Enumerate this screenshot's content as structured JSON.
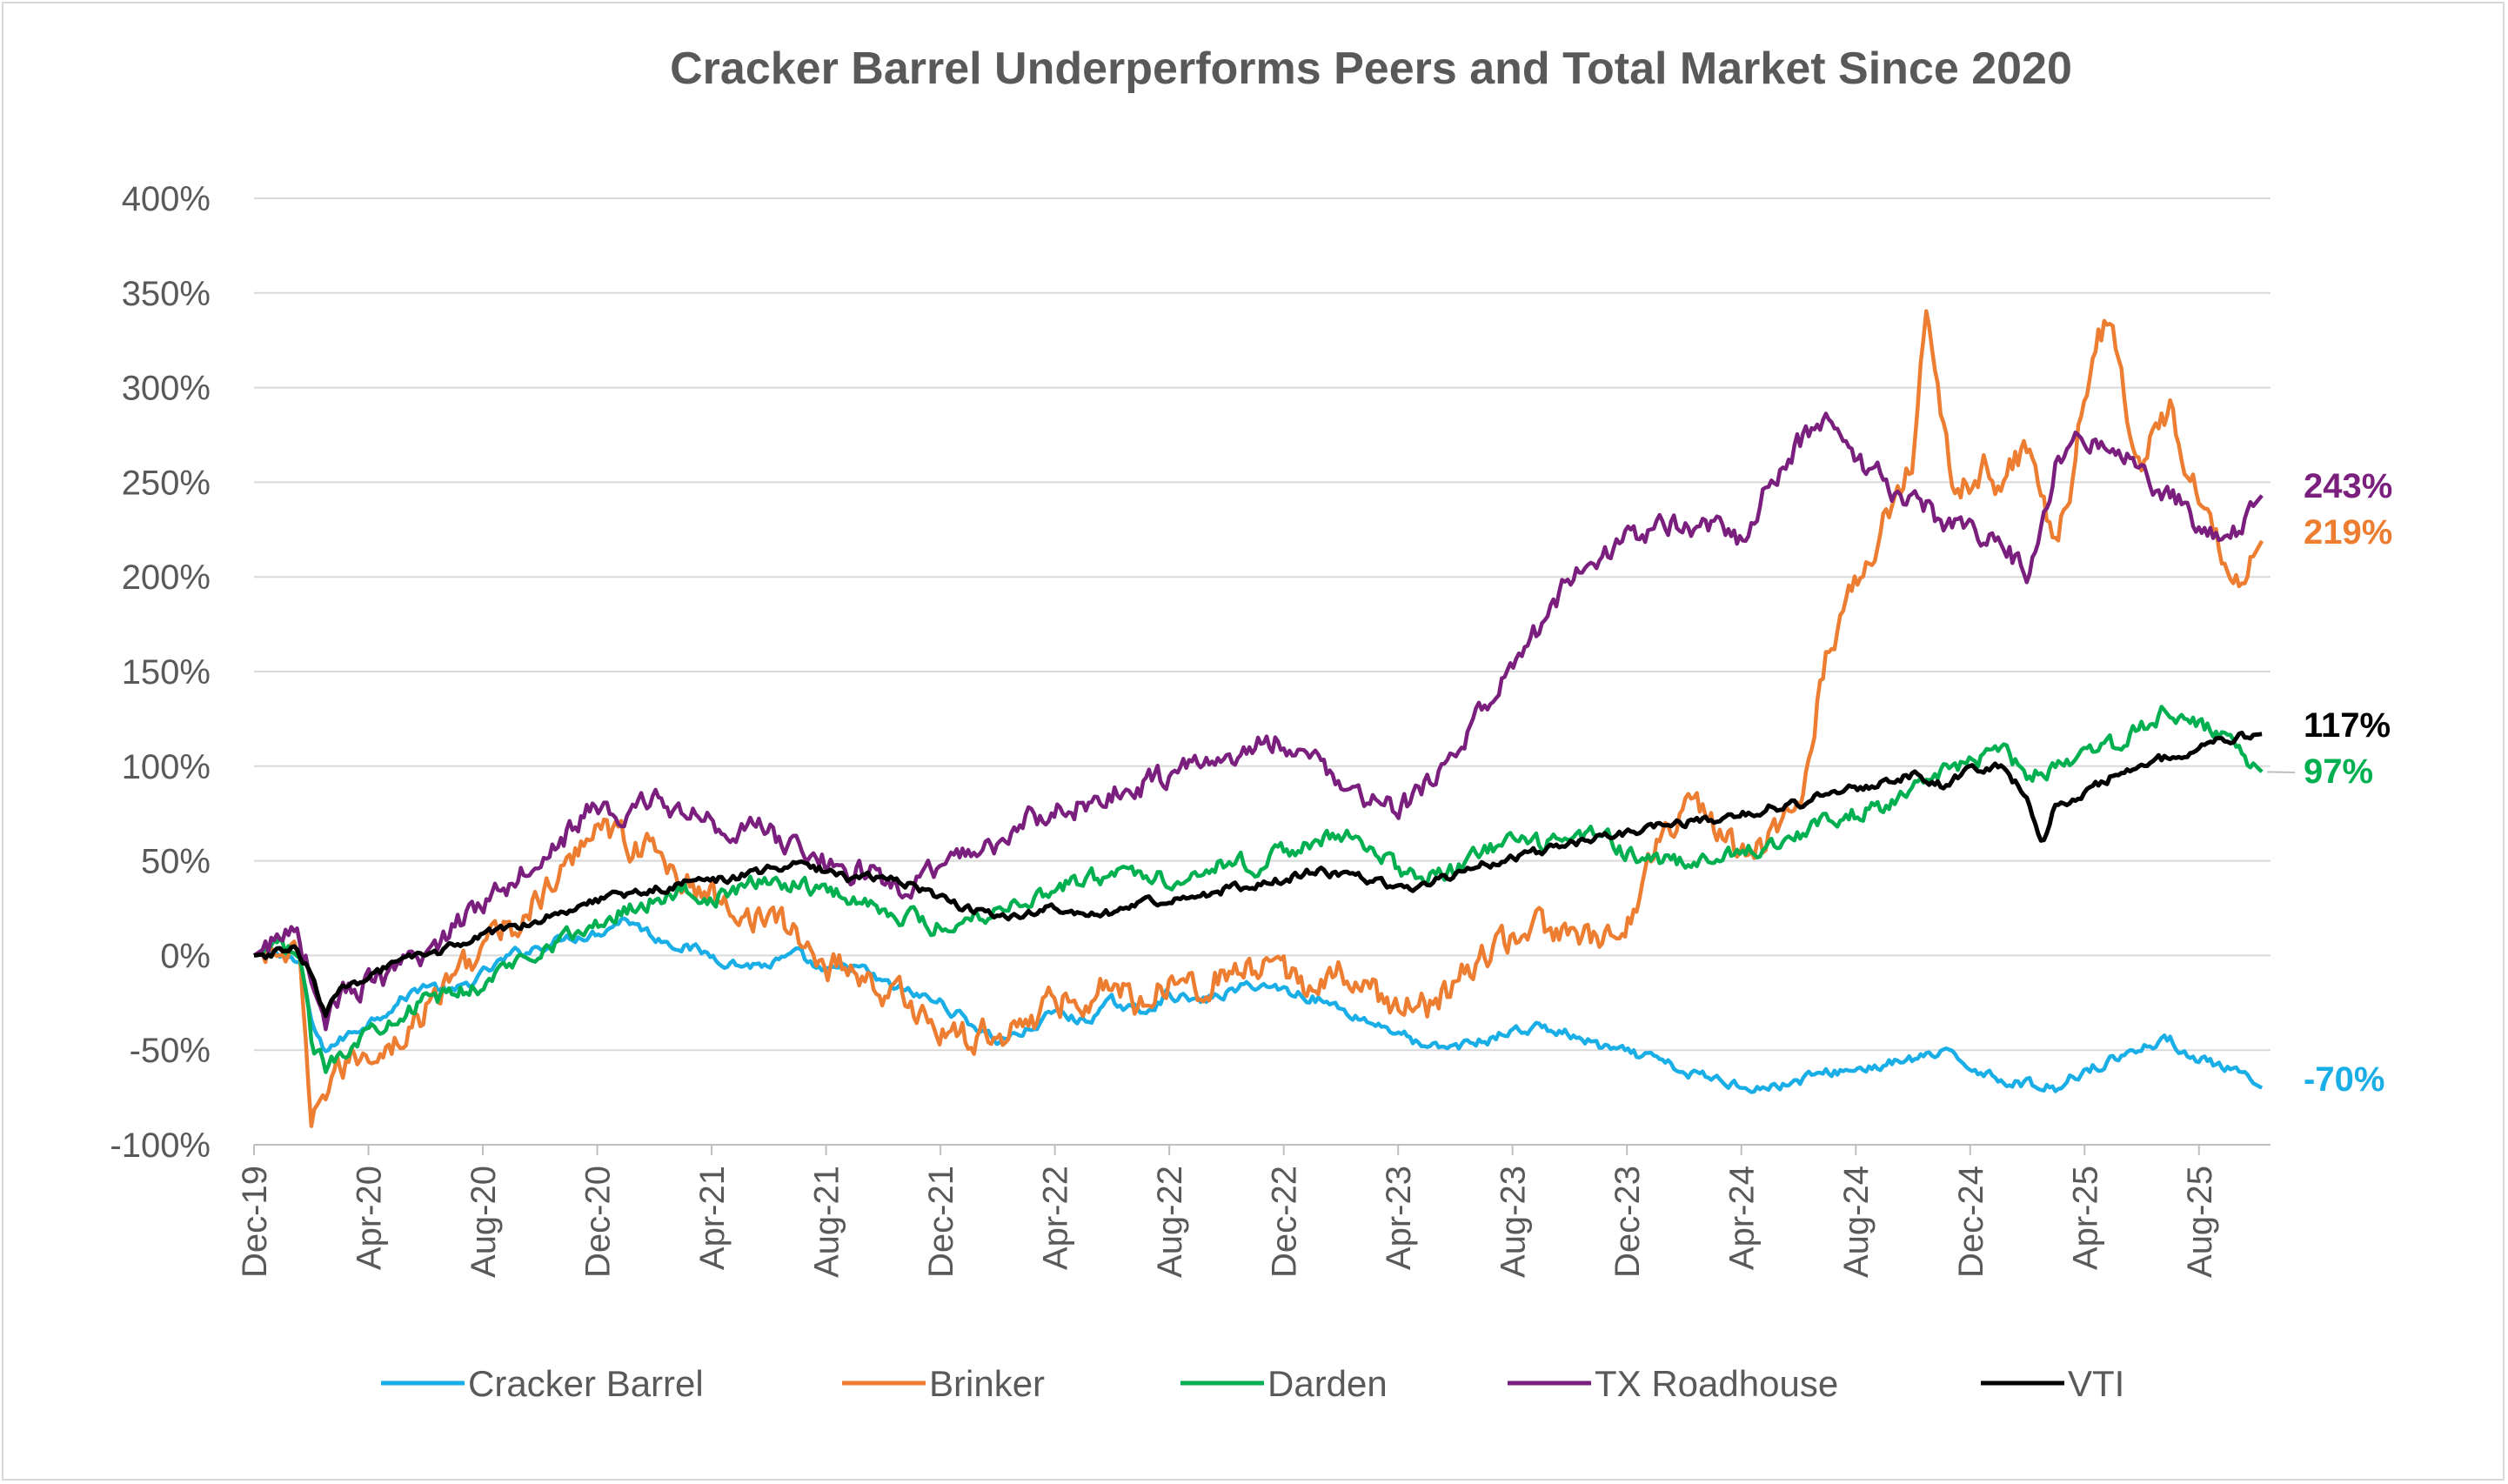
{
  "chart_data": {
    "type": "line",
    "title": "Cracker Barrel Underperforms Peers and Total Market Since 2020",
    "xlabel": "",
    "ylabel": "",
    "ylim": [
      -100,
      400
    ],
    "y_ticks": [
      400,
      350,
      300,
      250,
      200,
      150,
      100,
      50,
      0,
      -50,
      -100
    ],
    "y_tick_labels": [
      "400%",
      "350%",
      "300%",
      "250%",
      "200%",
      "150%",
      "100%",
      "50%",
      "0%",
      "-50%",
      "-100%"
    ],
    "x_tick_labels": [
      "Dec-19",
      "Apr-20",
      "Aug-20",
      "Dec-20",
      "Apr-21",
      "Aug-21",
      "Dec-21",
      "Apr-22",
      "Aug-22",
      "Dec-22",
      "Apr-23",
      "Aug-23",
      "Dec-23",
      "Apr-24",
      "Aug-24",
      "Dec-24",
      "Apr-25",
      "Aug-25"
    ],
    "x_range_months": [
      0,
      70.5
    ],
    "legend_position": "bottom",
    "grid": true,
    "series": [
      {
        "name": "Cracker Barrel",
        "color": "#1aaee6",
        "end_label": "-70%",
        "x": [
          0,
          1,
          1.6,
          2,
          2.4,
          3,
          4,
          5,
          6,
          7,
          8,
          9,
          10,
          11,
          12,
          13,
          14,
          15,
          16,
          17,
          18,
          19,
          20,
          21,
          22,
          23,
          24,
          25,
          26,
          27,
          28,
          29,
          30,
          31,
          32,
          33,
          34,
          35,
          36,
          37,
          38,
          39,
          40,
          41,
          42,
          43,
          44,
          45,
          46,
          47,
          48,
          49,
          50,
          51,
          52,
          53,
          54,
          55,
          56,
          57,
          58,
          59,
          60,
          61,
          62,
          63,
          64,
          65,
          66,
          67,
          68,
          69,
          70.2
        ],
        "values": [
          0,
          2,
          -5,
          -35,
          -50,
          -45,
          -35,
          -25,
          -15,
          -20,
          -10,
          0,
          5,
          10,
          12,
          20,
          10,
          5,
          0,
          -5,
          -5,
          0,
          -10,
          -5,
          -15,
          -20,
          -25,
          -35,
          -45,
          -40,
          -30,
          -35,
          -25,
          -30,
          -20,
          -25,
          -20,
          -15,
          -18,
          -22,
          -28,
          -35,
          -40,
          -50,
          -48,
          -45,
          -40,
          -38,
          -42,
          -48,
          -52,
          -55,
          -62,
          -65,
          -68,
          -70,
          -66,
          -62,
          -60,
          -58,
          -55,
          -52,
          -58,
          -65,
          -68,
          -70,
          -60,
          -55,
          -48,
          -45,
          -55,
          -60,
          -70
        ]
      },
      {
        "name": "Brinker",
        "color": "#ed7d31",
        "end_label": "219%",
        "x": [
          0,
          1,
          1.6,
          2,
          2.2,
          2.5,
          3,
          4,
          5,
          6,
          7,
          8,
          9,
          10,
          11,
          12,
          13,
          14,
          15,
          16,
          17,
          18,
          19,
          20,
          21,
          22,
          23,
          24,
          25,
          26,
          27,
          28,
          29,
          30,
          31,
          32,
          33,
          34,
          35,
          36,
          37,
          38,
          39,
          40,
          41,
          42,
          43,
          44,
          45,
          46,
          47,
          48,
          49,
          50,
          51,
          52,
          53,
          54,
          55,
          56,
          57,
          57.5,
          58,
          58.5,
          59,
          59.5,
          60,
          60.5,
          61,
          62,
          63,
          63.5,
          64,
          64.5,
          65,
          65.5,
          66,
          67,
          68,
          69,
          69.5,
          70.2
        ],
        "values": [
          0,
          2,
          -5,
          -100,
          -80,
          -70,
          -60,
          -50,
          -45,
          -30,
          -10,
          5,
          15,
          30,
          45,
          75,
          60,
          55,
          40,
          30,
          25,
          20,
          10,
          -5,
          -5,
          -20,
          -25,
          -40,
          -45,
          -40,
          -35,
          -25,
          -20,
          -15,
          -25,
          -10,
          -15,
          -10,
          -8,
          -12,
          -15,
          -10,
          -20,
          -25,
          -28,
          -15,
          0,
          10,
          15,
          10,
          5,
          15,
          60,
          80,
          70,
          50,
          60,
          80,
          160,
          200,
          230,
          250,
          260,
          350,
          280,
          240,
          250,
          260,
          250,
          270,
          220,
          250,
          300,
          330,
          335,
          280,
          265,
          285,
          245,
          210,
          200,
          219
        ]
      },
      {
        "name": "Darden",
        "color": "#00b050",
        "end_label": "97%",
        "x": [
          0,
          1,
          1.6,
          2,
          2.5,
          3,
          4,
          5,
          6,
          7,
          8,
          9,
          10,
          11,
          12,
          13,
          14,
          15,
          16,
          17,
          18,
          19,
          20,
          21,
          22,
          23,
          24,
          25,
          26,
          27,
          28,
          29,
          30,
          31,
          32,
          33,
          34,
          35,
          36,
          37,
          38,
          39,
          40,
          41,
          42,
          43,
          44,
          45,
          46,
          47,
          48,
          49,
          50,
          51,
          52,
          53,
          54,
          55,
          56,
          57,
          58,
          59,
          60,
          61,
          62,
          63,
          64,
          65,
          66,
          67,
          68,
          69,
          70.2
        ],
        "values": [
          0,
          5,
          0,
          -45,
          -60,
          -50,
          -40,
          -30,
          -25,
          -20,
          -15,
          -5,
          5,
          10,
          15,
          25,
          30,
          35,
          30,
          35,
          40,
          38,
          35,
          30,
          25,
          20,
          15,
          20,
          25,
          30,
          35,
          40,
          42,
          45,
          40,
          45,
          50,
          48,
          55,
          60,
          62,
          60,
          45,
          40,
          45,
          55,
          60,
          58,
          62,
          65,
          55,
          50,
          48,
          50,
          55,
          60,
          65,
          70,
          75,
          80,
          90,
          95,
          100,
          110,
          95,
          100,
          105,
          110,
          120,
          130,
          120,
          115,
          97
        ]
      },
      {
        "name": "TX Roadhouse",
        "color": "#7b1f7e",
        "end_label": "243%",
        "x": [
          0,
          1,
          1.5,
          1.7,
          2,
          2.5,
          3,
          4,
          5,
          6,
          7,
          8,
          9,
          10,
          11,
          12,
          13,
          14,
          15,
          16,
          17,
          18,
          19,
          20,
          21,
          22,
          23,
          24,
          25,
          26,
          27,
          28,
          29,
          30,
          31,
          32,
          33,
          34,
          35,
          36,
          37,
          38,
          39,
          40,
          41,
          42,
          43,
          44,
          45,
          46,
          47,
          48,
          49,
          50,
          51,
          52,
          53,
          54,
          55,
          56,
          57,
          58,
          59,
          60,
          61,
          61.5,
          62,
          63,
          63.5,
          64,
          65,
          66,
          67,
          68,
          69,
          69.5,
          70.2
        ],
        "values": [
          0,
          10,
          20,
          5,
          -10,
          -35,
          -20,
          -15,
          -10,
          0,
          15,
          30,
          40,
          55,
          65,
          80,
          70,
          85,
          75,
          70,
          68,
          65,
          55,
          50,
          45,
          40,
          35,
          45,
          55,
          60,
          70,
          75,
          80,
          85,
          90,
          95,
          100,
          105,
          110,
          115,
          100,
          95,
          80,
          75,
          90,
          110,
          130,
          150,
          175,
          200,
          210,
          220,
          225,
          230,
          225,
          220,
          250,
          270,
          285,
          260,
          250,
          240,
          230,
          225,
          220,
          210,
          200,
          260,
          275,
          270,
          265,
          255,
          245,
          225,
          215,
          230,
          243
        ]
      },
      {
        "name": "VTI",
        "color": "#000000",
        "end_label": "117%",
        "x": [
          0,
          1,
          1.5,
          2,
          2.5,
          3,
          4,
          5,
          6,
          7,
          8,
          9,
          10,
          11,
          12,
          13,
          14,
          15,
          16,
          17,
          18,
          19,
          20,
          21,
          22,
          23,
          24,
          25,
          26,
          27,
          28,
          29,
          30,
          31,
          32,
          33,
          34,
          35,
          36,
          37,
          38,
          39,
          40,
          41,
          42,
          43,
          44,
          45,
          46,
          47,
          48,
          49,
          50,
          51,
          52,
          53,
          54,
          55,
          56,
          57,
          58,
          59,
          60,
          61,
          62,
          62.5,
          63,
          64,
          65,
          66,
          67,
          68,
          69,
          70.2
        ],
        "values": [
          0,
          2,
          4,
          -10,
          -30,
          -20,
          -10,
          -5,
          0,
          5,
          10,
          15,
          20,
          25,
          30,
          32,
          35,
          38,
          40,
          42,
          45,
          48,
          45,
          40,
          42,
          38,
          30,
          25,
          20,
          22,
          25,
          20,
          22,
          28,
          30,
          32,
          35,
          38,
          40,
          45,
          42,
          40,
          35,
          38,
          42,
          48,
          52,
          55,
          60,
          62,
          65,
          68,
          70,
          72,
          75,
          78,
          80,
          85,
          88,
          92,
          95,
          90,
          98,
          100,
          85,
          60,
          80,
          85,
          95,
          100,
          105,
          110,
          115,
          117
        ]
      }
    ]
  }
}
